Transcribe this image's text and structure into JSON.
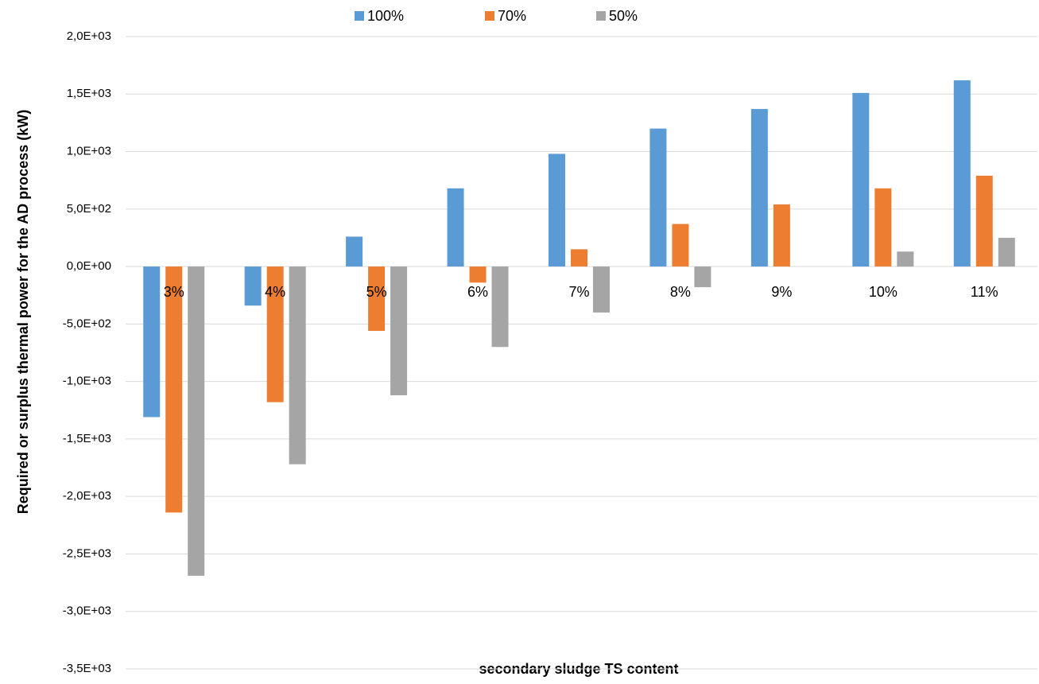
{
  "chart_data": {
    "type": "bar",
    "x_label": "secondary  sludge TS content",
    "y_label": "Required or surplus thermal power for the AD process (kW)",
    "categories": [
      "3%",
      "4%",
      "5%",
      "6%",
      "7%",
      "8%",
      "9%",
      "10%",
      "11%"
    ],
    "series": [
      {
        "name": "100%",
        "color": "#5b9bd5",
        "values": [
          -1310,
          -340,
          260,
          680,
          980,
          1200,
          1370,
          1510,
          1620
        ]
      },
      {
        "name": "70%",
        "color": "#ed7d31",
        "values": [
          -2140,
          -1180,
          -560,
          -140,
          150,
          370,
          540,
          680,
          790
        ]
      },
      {
        "name": "50%",
        "color": "#a5a5a5",
        "values": [
          -2690,
          -1720,
          -1120,
          -700,
          -400,
          -180,
          0,
          130,
          250
        ]
      }
    ],
    "ylim": [
      -3500,
      2000
    ],
    "yticks": [
      {
        "value": -3500,
        "label": "-3,5E+03"
      },
      {
        "value": -3000,
        "label": "-3,0E+03"
      },
      {
        "value": -2500,
        "label": "-2,5E+03"
      },
      {
        "value": -2000,
        "label": "-2,0E+03"
      },
      {
        "value": -1500,
        "label": "-1,5E+03"
      },
      {
        "value": -1000,
        "label": "-1,0E+03"
      },
      {
        "value": -500,
        "label": "-5,0E+02"
      },
      {
        "value": 0,
        "label": "0,0E+00"
      },
      {
        "value": 500,
        "label": "5,0E+02"
      },
      {
        "value": 1000,
        "label": "1,0E+03"
      },
      {
        "value": 1500,
        "label": "1,5E+03"
      },
      {
        "value": 2000,
        "label": "2,0E+03"
      }
    ],
    "grid": true,
    "legend": "top"
  }
}
